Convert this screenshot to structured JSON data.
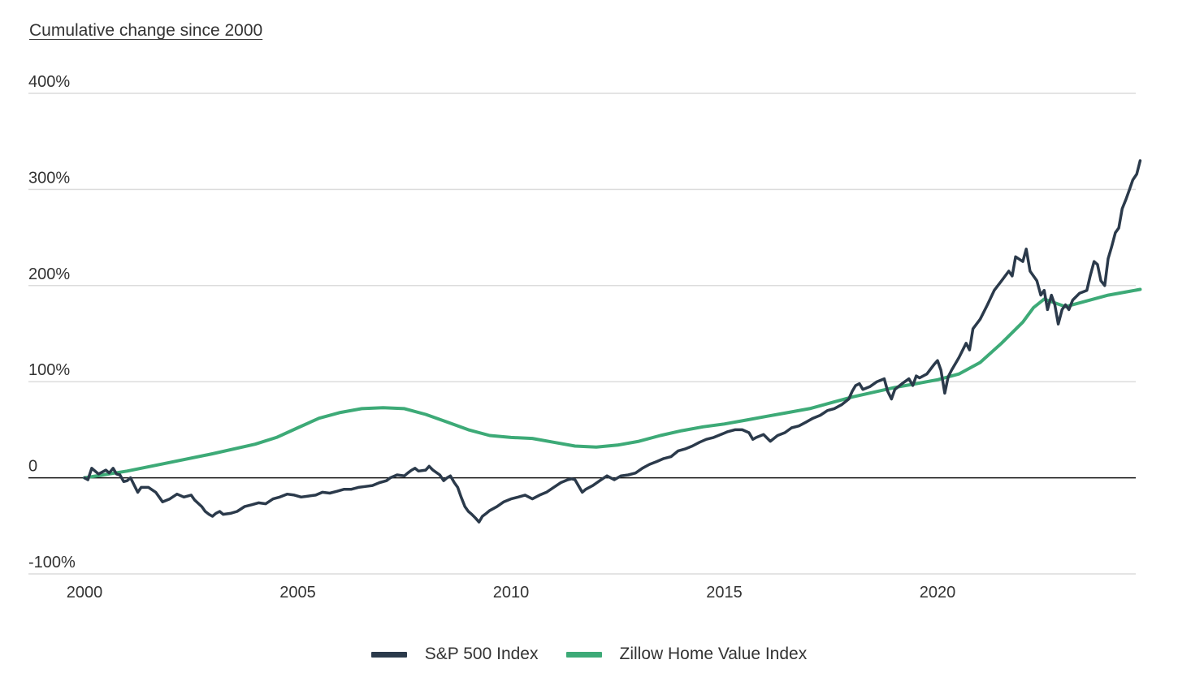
{
  "title": "Cumulative change since 2000",
  "chart_data": {
    "type": "line",
    "title": "Cumulative change since 2000",
    "xlabel": "",
    "ylabel": "",
    "x_range": [
      2000,
      2024.75
    ],
    "ylim": [
      -100,
      400
    ],
    "y_ticks": [
      {
        "value": 400,
        "label": "400%"
      },
      {
        "value": 300,
        "label": "300%"
      },
      {
        "value": 200,
        "label": "200%"
      },
      {
        "value": 100,
        "label": "100%"
      },
      {
        "value": 0,
        "label": "0"
      },
      {
        "value": -100,
        "label": "-100%"
      }
    ],
    "x_ticks": [
      {
        "value": 2000,
        "label": "2000"
      },
      {
        "value": 2005,
        "label": "2005"
      },
      {
        "value": 2010,
        "label": "2010"
      },
      {
        "value": 2015,
        "label": "2015"
      },
      {
        "value": 2020,
        "label": "2020"
      }
    ],
    "grid": true,
    "legend_position": "bottom",
    "series": [
      {
        "name": "S&P 500 Index",
        "color": "#2b3a4b",
        "points": [
          [
            2000.0,
            0
          ],
          [
            2000.08,
            -2
          ],
          [
            2000.17,
            10
          ],
          [
            2000.33,
            4
          ],
          [
            2000.5,
            8
          ],
          [
            2000.58,
            5
          ],
          [
            2000.67,
            10
          ],
          [
            2000.75,
            4
          ],
          [
            2000.83,
            3
          ],
          [
            2000.92,
            -4
          ],
          [
            2001.0,
            -3
          ],
          [
            2001.08,
            0
          ],
          [
            2001.17,
            -8
          ],
          [
            2001.25,
            -15
          ],
          [
            2001.33,
            -10
          ],
          [
            2001.5,
            -10
          ],
          [
            2001.67,
            -15
          ],
          [
            2001.83,
            -25
          ],
          [
            2002.0,
            -22
          ],
          [
            2002.17,
            -17
          ],
          [
            2002.33,
            -20
          ],
          [
            2002.5,
            -18
          ],
          [
            2002.58,
            -23
          ],
          [
            2002.75,
            -30
          ],
          [
            2002.83,
            -35
          ],
          [
            2002.92,
            -38
          ],
          [
            2003.0,
            -40
          ],
          [
            2003.08,
            -37
          ],
          [
            2003.17,
            -35
          ],
          [
            2003.25,
            -38
          ],
          [
            2003.42,
            -37
          ],
          [
            2003.58,
            -35
          ],
          [
            2003.75,
            -30
          ],
          [
            2003.92,
            -28
          ],
          [
            2004.08,
            -26
          ],
          [
            2004.25,
            -27
          ],
          [
            2004.42,
            -22
          ],
          [
            2004.58,
            -20
          ],
          [
            2004.75,
            -17
          ],
          [
            2004.92,
            -18
          ],
          [
            2005.08,
            -20
          ],
          [
            2005.25,
            -19
          ],
          [
            2005.42,
            -18
          ],
          [
            2005.58,
            -15
          ],
          [
            2005.75,
            -16
          ],
          [
            2005.92,
            -14
          ],
          [
            2006.08,
            -12
          ],
          [
            2006.25,
            -12
          ],
          [
            2006.42,
            -10
          ],
          [
            2006.58,
            -9
          ],
          [
            2006.75,
            -8
          ],
          [
            2006.92,
            -5
          ],
          [
            2007.08,
            -3
          ],
          [
            2007.17,
            0
          ],
          [
            2007.33,
            3
          ],
          [
            2007.5,
            2
          ],
          [
            2007.58,
            5
          ],
          [
            2007.67,
            8
          ],
          [
            2007.75,
            10
          ],
          [
            2007.83,
            7
          ],
          [
            2008.0,
            8
          ],
          [
            2008.08,
            12
          ],
          [
            2008.17,
            8
          ],
          [
            2008.33,
            3
          ],
          [
            2008.42,
            -3
          ],
          [
            2008.5,
            0
          ],
          [
            2008.58,
            2
          ],
          [
            2008.67,
            -5
          ],
          [
            2008.75,
            -10
          ],
          [
            2008.83,
            -20
          ],
          [
            2008.92,
            -30
          ],
          [
            2009.0,
            -35
          ],
          [
            2009.08,
            -38
          ],
          [
            2009.17,
            -42
          ],
          [
            2009.25,
            -46
          ],
          [
            2009.33,
            -40
          ],
          [
            2009.42,
            -37
          ],
          [
            2009.5,
            -34
          ],
          [
            2009.67,
            -30
          ],
          [
            2009.83,
            -25
          ],
          [
            2010.0,
            -22
          ],
          [
            2010.17,
            -20
          ],
          [
            2010.33,
            -18
          ],
          [
            2010.5,
            -22
          ],
          [
            2010.67,
            -18
          ],
          [
            2010.83,
            -15
          ],
          [
            2011.0,
            -10
          ],
          [
            2011.17,
            -5
          ],
          [
            2011.33,
            -2
          ],
          [
            2011.42,
            -1
          ],
          [
            2011.5,
            -2
          ],
          [
            2011.58,
            -8
          ],
          [
            2011.67,
            -15
          ],
          [
            2011.75,
            -12
          ],
          [
            2011.92,
            -8
          ],
          [
            2012.08,
            -3
          ],
          [
            2012.25,
            2
          ],
          [
            2012.42,
            -2
          ],
          [
            2012.58,
            2
          ],
          [
            2012.75,
            3
          ],
          [
            2012.92,
            5
          ],
          [
            2013.08,
            10
          ],
          [
            2013.25,
            14
          ],
          [
            2013.42,
            17
          ],
          [
            2013.58,
            20
          ],
          [
            2013.75,
            22
          ],
          [
            2013.92,
            28
          ],
          [
            2014.08,
            30
          ],
          [
            2014.25,
            33
          ],
          [
            2014.42,
            37
          ],
          [
            2014.58,
            40
          ],
          [
            2014.75,
            42
          ],
          [
            2014.92,
            45
          ],
          [
            2015.08,
            48
          ],
          [
            2015.25,
            50
          ],
          [
            2015.42,
            50
          ],
          [
            2015.58,
            47
          ],
          [
            2015.67,
            40
          ],
          [
            2015.75,
            42
          ],
          [
            2015.92,
            45
          ],
          [
            2016.08,
            38
          ],
          [
            2016.25,
            44
          ],
          [
            2016.42,
            47
          ],
          [
            2016.58,
            52
          ],
          [
            2016.75,
            54
          ],
          [
            2016.92,
            58
          ],
          [
            2017.08,
            62
          ],
          [
            2017.25,
            65
          ],
          [
            2017.42,
            70
          ],
          [
            2017.58,
            72
          ],
          [
            2017.75,
            76
          ],
          [
            2017.92,
            82
          ],
          [
            2018.0,
            90
          ],
          [
            2018.08,
            96
          ],
          [
            2018.17,
            98
          ],
          [
            2018.25,
            92
          ],
          [
            2018.42,
            95
          ],
          [
            2018.58,
            100
          ],
          [
            2018.75,
            103
          ],
          [
            2018.83,
            90
          ],
          [
            2018.92,
            82
          ],
          [
            2019.0,
            92
          ],
          [
            2019.17,
            98
          ],
          [
            2019.33,
            103
          ],
          [
            2019.42,
            96
          ],
          [
            2019.5,
            106
          ],
          [
            2019.58,
            104
          ],
          [
            2019.75,
            108
          ],
          [
            2019.92,
            118
          ],
          [
            2020.0,
            122
          ],
          [
            2020.08,
            112
          ],
          [
            2020.17,
            88
          ],
          [
            2020.25,
            105
          ],
          [
            2020.33,
            112
          ],
          [
            2020.5,
            125
          ],
          [
            2020.67,
            140
          ],
          [
            2020.75,
            133
          ],
          [
            2020.83,
            155
          ],
          [
            2021.0,
            165
          ],
          [
            2021.17,
            180
          ],
          [
            2021.33,
            195
          ],
          [
            2021.5,
            205
          ],
          [
            2021.67,
            215
          ],
          [
            2021.75,
            210
          ],
          [
            2021.83,
            230
          ],
          [
            2022.0,
            225
          ],
          [
            2022.08,
            238
          ],
          [
            2022.17,
            215
          ],
          [
            2022.33,
            205
          ],
          [
            2022.42,
            190
          ],
          [
            2022.5,
            195
          ],
          [
            2022.58,
            175
          ],
          [
            2022.67,
            190
          ],
          [
            2022.75,
            180
          ],
          [
            2022.83,
            160
          ],
          [
            2022.92,
            175
          ],
          [
            2023.0,
            180
          ],
          [
            2023.08,
            175
          ],
          [
            2023.17,
            185
          ],
          [
            2023.33,
            192
          ],
          [
            2023.5,
            195
          ],
          [
            2023.58,
            210
          ],
          [
            2023.67,
            225
          ],
          [
            2023.75,
            222
          ],
          [
            2023.83,
            205
          ],
          [
            2023.92,
            200
          ],
          [
            2024.0,
            228
          ],
          [
            2024.08,
            240
          ],
          [
            2024.17,
            255
          ],
          [
            2024.25,
            260
          ],
          [
            2024.33,
            280
          ],
          [
            2024.42,
            290
          ],
          [
            2024.5,
            300
          ],
          [
            2024.58,
            310
          ],
          [
            2024.67,
            316
          ],
          [
            2024.75,
            330
          ]
        ]
      },
      {
        "name": "Zillow Home Value Index",
        "color": "#3daa77",
        "points": [
          [
            2000.0,
            0
          ],
          [
            2001.0,
            7
          ],
          [
            2002.0,
            16
          ],
          [
            2003.0,
            25
          ],
          [
            2004.0,
            35
          ],
          [
            2004.5,
            42
          ],
          [
            2005.0,
            52
          ],
          [
            2005.5,
            62
          ],
          [
            2006.0,
            68
          ],
          [
            2006.5,
            72
          ],
          [
            2007.0,
            73
          ],
          [
            2007.5,
            72
          ],
          [
            2008.0,
            66
          ],
          [
            2008.5,
            58
          ],
          [
            2009.0,
            50
          ],
          [
            2009.5,
            44
          ],
          [
            2010.0,
            42
          ],
          [
            2010.5,
            41
          ],
          [
            2011.0,
            37
          ],
          [
            2011.5,
            33
          ],
          [
            2012.0,
            32
          ],
          [
            2012.5,
            34
          ],
          [
            2013.0,
            38
          ],
          [
            2013.5,
            44
          ],
          [
            2014.0,
            49
          ],
          [
            2014.5,
            53
          ],
          [
            2015.0,
            56
          ],
          [
            2015.5,
            60
          ],
          [
            2016.0,
            64
          ],
          [
            2016.5,
            68
          ],
          [
            2017.0,
            72
          ],
          [
            2017.5,
            78
          ],
          [
            2018.0,
            84
          ],
          [
            2018.5,
            89
          ],
          [
            2019.0,
            94
          ],
          [
            2019.5,
            98
          ],
          [
            2020.0,
            102
          ],
          [
            2020.5,
            108
          ],
          [
            2021.0,
            120
          ],
          [
            2021.5,
            140
          ],
          [
            2022.0,
            162
          ],
          [
            2022.25,
            177
          ],
          [
            2022.5,
            186
          ],
          [
            2022.75,
            182
          ],
          [
            2023.0,
            178
          ],
          [
            2023.5,
            184
          ],
          [
            2024.0,
            190
          ],
          [
            2024.5,
            194
          ],
          [
            2024.75,
            196
          ]
        ]
      }
    ]
  }
}
